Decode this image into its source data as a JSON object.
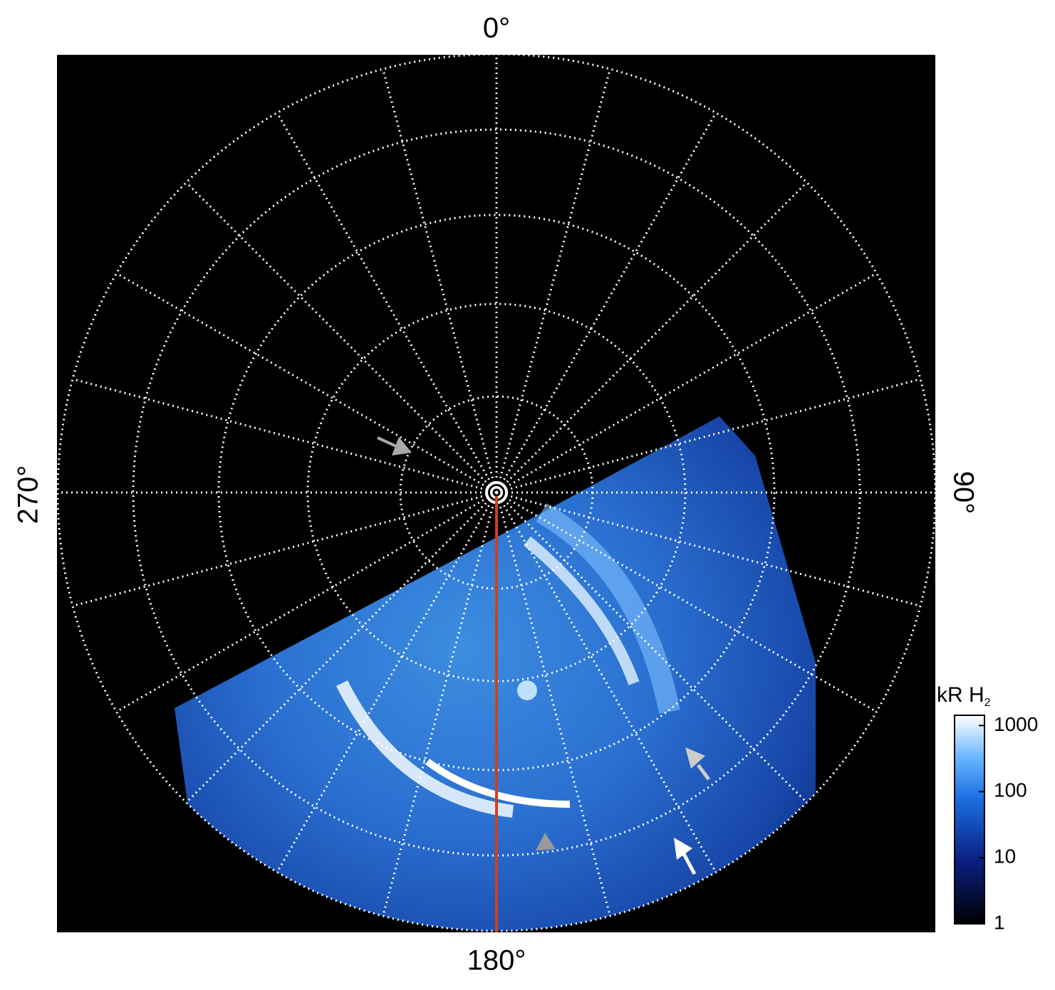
{
  "map": {
    "longitude_labels": {
      "top": "0°",
      "right": "90°",
      "bottom": "180°",
      "left": "270°"
    },
    "colorbar": {
      "title": "kR H",
      "title_subscript": "2",
      "scale": "log",
      "lim": [
        1,
        1430
      ],
      "ticks": [
        1,
        10,
        100,
        1000
      ]
    }
  }
}
